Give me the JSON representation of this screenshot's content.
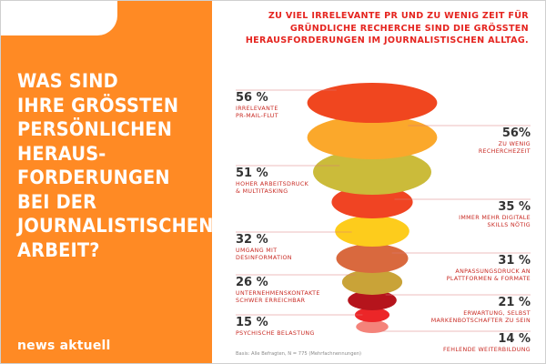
{
  "headline": "WAS SIND\nIHRE GRÖSSTEN\nPERSÖNLICHEN\nHERAUS-\nFORDERUNGEN\nBEI DER\nJOURNALISTISCHEN\nARBEIT?",
  "brand": "news aktuell",
  "subtitle": "ZU VIEL IRRELEVANTE PR UND ZU WENIG ZEIT FÜR\nGRÜNDLICHE RECHERCHE SIND DIE GRÖSSTEN\nHERAUSFORDERUNGEN IM JOURNALISTISCHEN ALLTAG.",
  "footnote": "Basis: Alle Befragten, N = 775 (Mehrfachnennungen)",
  "colors": {
    "panel": "#ff8a24",
    "accent": "#e52520"
  },
  "chart_data": {
    "type": "bar",
    "unit": "%",
    "categories": [
      "IRRELEVANTE\nPR-MAIL-FLUT",
      "ZU WENIG\nRECHERCHEZEIT",
      "HOHER ARBEITSDRUCK\n& MULTITASKING",
      "IMMER MEHR DIGITALE\nSKILLS NÖTIG",
      "UMGANG MIT\nDESINFORMATION",
      "ANPASSUNGSDRUCK AN\nPLATTFORMEN & FORMATE",
      "UNTERNEHMENSKONTAKTE\nSCHWER ERREICHBAR",
      "ERWARTUNG, SELBST\nMARKENBOTSCHAFTER ZU SEIN",
      "PSYCHISCHE BELASTUNG",
      "FEHLENDE WEITERBILDUNG"
    ],
    "values": [
      56,
      56,
      51,
      35,
      32,
      31,
      26,
      21,
      15,
      14
    ],
    "labels": [
      "56 %",
      "56%",
      "51 %",
      "35 %",
      "32 %",
      "31 %",
      "26 %",
      "21 %",
      "15 %",
      "14 %"
    ],
    "sides": [
      "left",
      "right",
      "left",
      "right",
      "left",
      "right",
      "left",
      "right",
      "left",
      "right"
    ],
    "colors": [
      "#f0461f",
      "#fba82b",
      "#cbbb3a",
      "#f04423",
      "#fdcc1c",
      "#d9693e",
      "#c9a338",
      "#b5141c",
      "#ec2628",
      "#f4837a"
    ]
  }
}
